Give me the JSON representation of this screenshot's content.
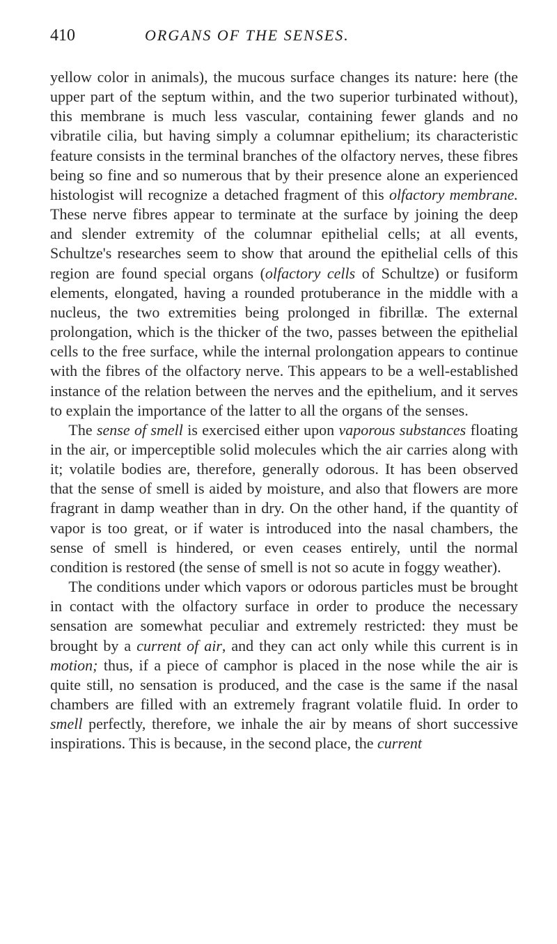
{
  "header": {
    "page_number": "410",
    "chapter_title": "ORGANS OF THE SENSES."
  },
  "paragraphs": {
    "p1_html": "yellow color in animals), the mucous surface changes its nature: here (the upper part of the septum within, and the two superior turbinated without), this membrane is much less vascular, containing fewer glands and no vibratile cilia, but having simply a columnar epithelium; its characteristic feature consists in the terminal branches of the olfactory nerves, these fibres being so fine and so numerous that by their presence alone an experienced histologist will recognize a detached fragment of this <span class=\"italic\">olfactory membrane.</span> These nerve fibres appear to terminate at the surface by joining the deep and slender extremity of the columnar epithelial cells; at all events, Schultze's researches seem to show that around the epithelial cells of this region are found special organs (<span class=\"italic\">olfactory cells</span> of Schultze) or fusiform elements, elongated, having a rounded protuberance in the middle with a nucleus, the two extremities being prolonged in fibrillæ. The external prolongation, which is the thicker of the two, passes between the epithelial cells to the free surface, while the internal prolongation appears to continue with the fibres of the olfactory nerve. This appears to be a well-established instance of the relation between the nerves and the epithelium, and it serves to explain the importance of the latter to all the organs of the senses.",
    "p2_html": "The <span class=\"italic\">sense of smell</span> is exercised either upon <span class=\"italic\">vaporous substances</span> floating in the air, or imperceptible solid molecules which the air carries along with it; volatile bodies are, therefore, generally odorous. It has been observed that the sense of smell is aided by moisture, and also that flowers are more fragrant in damp weather than in dry. On the other hand, if the quantity of vapor is too great, or if water is introduced into the nasal chambers, the sense of smell is hindered, or even ceases entirely, until the normal condition is restored (the sense of smell is not so acute in foggy weather).",
    "p3_html": "The conditions under which vapors or odorous particles must be brought in contact with the olfactory surface in order to produce the necessary sensation are somewhat peculiar and extremely restricted: they must be brought by a <span class=\"italic\">current of air</span>, and they can act only while this current is in <span class=\"italic\">motion;</span> thus, if a piece of camphor is placed in the nose while the air is quite still, no sensation is produced, and the case is the same if the nasal chambers are filled with an extremely fragrant volatile fluid. In order to <span class=\"italic\">smell</span> perfectly, therefore, we inhale the air by means of short successive inspirations. This is because, in the second place, the <span class=\"italic\">current</span>"
  }
}
